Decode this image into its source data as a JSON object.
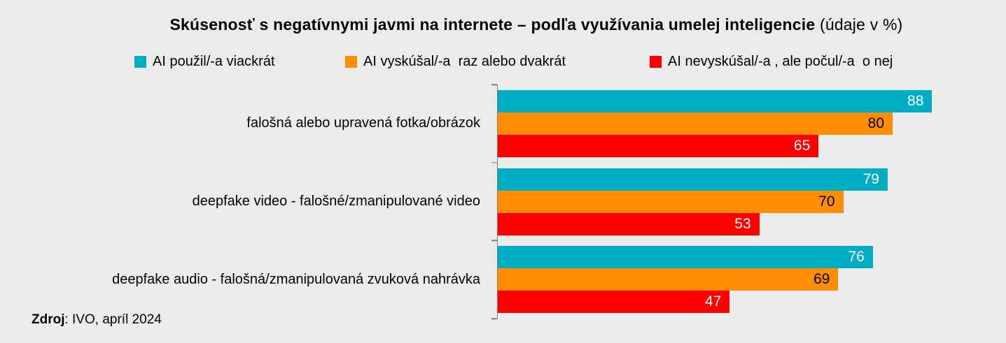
{
  "title": {
    "bold": "Skúsenosť s negatívnymi javmi na internete – podľa využívania umelej inteligencie",
    "suffix": "(údaje v %)"
  },
  "source": {
    "bold": "Zdroj",
    "rest": ": IVO, apríl 2024"
  },
  "colors": {
    "background": "#EBEBEB",
    "axis": "#7F7F7F",
    "text": "#000000"
  },
  "chart_data": {
    "type": "bar",
    "orientation": "horizontal",
    "title": "Skúsenosť s negatívnymi javmi na internete – podľa využívania umelej inteligencie (údaje v %)",
    "categories": [
      "falošná alebo upravená fotka/obrázok",
      "deepfake video - falošné/zmanipulované video",
      "deepfake audio - falošná/zmanipulovaná zvuková nahrávka"
    ],
    "series": [
      {
        "name": "AI použil/-a viackrát",
        "color": "#00AEC4",
        "label_color": "#FFFFFF",
        "values": [
          88,
          79,
          76
        ]
      },
      {
        "name": "AI vyskúšal/-a  raz alebo dvakrát",
        "color": "#FF8C05",
        "label_color": "#000000",
        "values": [
          80,
          70,
          69
        ]
      },
      {
        "name": "AI nevyskúšal/-a , ale počul/-a  o nej",
        "color": "#FF0000",
        "label_color": "#FFFFFF",
        "values": [
          65,
          53,
          47
        ]
      }
    ],
    "xlim": [
      0,
      100
    ],
    "value_labels": true,
    "grid": false,
    "x_axis_labels": false,
    "legend_position": "top"
  }
}
